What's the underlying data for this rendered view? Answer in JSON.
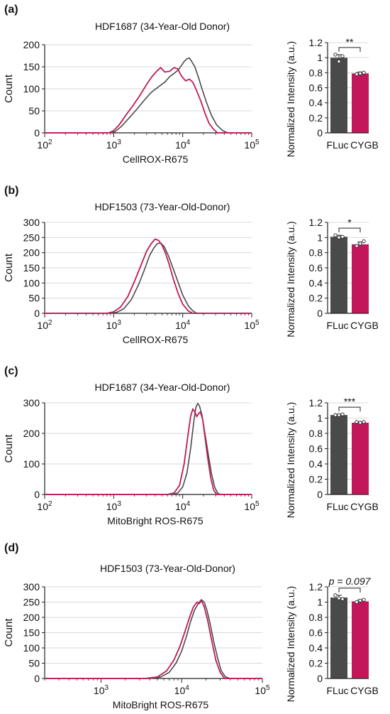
{
  "colors": {
    "fluc": "#4a4a4a",
    "cygb": "#c2185b",
    "grid": "#d9d9d9",
    "axis": "#222222"
  },
  "chart_data": [
    {
      "type": "line",
      "panel": "(a)",
      "title": "HDF1687 (34-Year-Old Donor)",
      "xlabel": "CellROX-R675",
      "ylabel": "Count",
      "xscale": "log",
      "xlim": [
        100,
        100000
      ],
      "ylim": [
        0,
        200
      ],
      "yticks": [
        0,
        50,
        100,
        150,
        200
      ],
      "xticks": [
        {
          "value": 100,
          "exp": "2"
        },
        {
          "value": 1000,
          "exp": "3"
        },
        {
          "value": 10000,
          "exp": "4"
        },
        {
          "value": 100000,
          "exp": "5"
        }
      ],
      "grid": "horizontal",
      "series": [
        {
          "color": "#4a4a4a",
          "points": [
            [
              100,
              0
            ],
            [
              900,
              0
            ],
            [
              1050,
              3
            ],
            [
              1300,
              15
            ],
            [
              1700,
              35
            ],
            [
              2200,
              55
            ],
            [
              2800,
              75
            ],
            [
              3500,
              92
            ],
            [
              4500,
              105
            ],
            [
              5500,
              115
            ],
            [
              6500,
              128
            ],
            [
              7500,
              135
            ],
            [
              8500,
              142
            ],
            [
              9500,
              152
            ],
            [
              10500,
              162
            ],
            [
              11500,
              168
            ],
            [
              12500,
              170
            ],
            [
              13500,
              162
            ],
            [
              15000,
              150
            ],
            [
              17000,
              125
            ],
            [
              19000,
              100
            ],
            [
              22000,
              70
            ],
            [
              26000,
              40
            ],
            [
              31000,
              18
            ],
            [
              38000,
              5
            ],
            [
              45000,
              0
            ],
            [
              100000,
              0
            ]
          ]
        },
        {
          "color": "#c2185b",
          "points": [
            [
              100,
              0
            ],
            [
              850,
              0
            ],
            [
              1000,
              5
            ],
            [
              1200,
              18
            ],
            [
              1500,
              40
            ],
            [
              1900,
              62
            ],
            [
              2400,
              85
            ],
            [
              3000,
              110
            ],
            [
              3600,
              128
            ],
            [
              4200,
              140
            ],
            [
              4800,
              148
            ],
            [
              5500,
              138
            ],
            [
              6500,
              140
            ],
            [
              7500,
              148
            ],
            [
              8500,
              145
            ],
            [
              9500,
              130
            ],
            [
              11000,
              118
            ],
            [
              12500,
              122
            ],
            [
              14000,
              115
            ],
            [
              16000,
              95
            ],
            [
              18500,
              70
            ],
            [
              21000,
              45
            ],
            [
              24000,
              22
            ],
            [
              28000,
              8
            ],
            [
              32000,
              0
            ],
            [
              100000,
              0
            ]
          ]
        }
      ]
    },
    {
      "type": "bar",
      "panel": "(a)",
      "categories": [
        "FLuc",
        "CYGB"
      ],
      "values": [
        1.0,
        0.79
      ],
      "errors": [
        0.04,
        0.02
      ],
      "points": [
        [
          1.04,
          0.95,
          1.02
        ],
        [
          0.78,
          0.79,
          0.8
        ]
      ],
      "ylabel": "Normalized Intensity (a.u.)",
      "ylim": [
        0,
        1.2
      ],
      "yticks": [
        "0",
        "0.2",
        "0.4",
        "0.6",
        "0.8",
        "1",
        "1.2"
      ],
      "significance": "**"
    },
    {
      "type": "line",
      "panel": "(b)",
      "title": "HDF1503 (73-Year-Old-Donor)",
      "xlabel": "CellROX-R675",
      "ylabel": "Count",
      "xscale": "log",
      "xlim": [
        100,
        100000
      ],
      "ylim": [
        0,
        300
      ],
      "yticks": [
        0,
        50,
        100,
        150,
        200,
        250,
        300
      ],
      "xticks": [
        {
          "value": 100,
          "exp": "2"
        },
        {
          "value": 1000,
          "exp": "3"
        },
        {
          "value": 10000,
          "exp": "4"
        },
        {
          "value": 100000,
          "exp": "5"
        }
      ],
      "grid": "horizontal",
      "series": [
        {
          "color": "#4a4a4a",
          "points": [
            [
              100,
              0
            ],
            [
              900,
              0
            ],
            [
              1100,
              3
            ],
            [
              1400,
              15
            ],
            [
              1800,
              45
            ],
            [
              2300,
              95
            ],
            [
              2800,
              145
            ],
            [
              3300,
              190
            ],
            [
              3800,
              215
            ],
            [
              4300,
              230
            ],
            [
              4800,
              232
            ],
            [
              5400,
              220
            ],
            [
              6200,
              190
            ],
            [
              7200,
              150
            ],
            [
              8500,
              105
            ],
            [
              10000,
              60
            ],
            [
              12000,
              25
            ],
            [
              14000,
              8
            ],
            [
              16000,
              0
            ],
            [
              100000,
              0
            ]
          ]
        },
        {
          "color": "#c2185b",
          "points": [
            [
              100,
              0
            ],
            [
              800,
              0
            ],
            [
              1000,
              5
            ],
            [
              1250,
              20
            ],
            [
              1600,
              55
            ],
            [
              2000,
              105
            ],
            [
              2500,
              160
            ],
            [
              3000,
              205
            ],
            [
              3500,
              230
            ],
            [
              4000,
              245
            ],
            [
              4500,
              240
            ],
            [
              5000,
              225
            ],
            [
              5600,
              200
            ],
            [
              6400,
              160
            ],
            [
              7400,
              110
            ],
            [
              8600,
              65
            ],
            [
              10000,
              30
            ],
            [
              12000,
              8
            ],
            [
              14000,
              0
            ],
            [
              100000,
              0
            ]
          ]
        }
      ]
    },
    {
      "type": "bar",
      "panel": "(b)",
      "categories": [
        "FLuc",
        "CYGB"
      ],
      "values": [
        1.01,
        0.91
      ],
      "errors": [
        0.02,
        0.03
      ],
      "points": [
        [
          1.03,
          1.0,
          1.01
        ],
        [
          0.89,
          0.92,
          0.95
        ]
      ],
      "ylabel": "Normalized Intensity (a.u.)",
      "ylim": [
        0,
        1.2
      ],
      "yticks": [
        "0",
        "0.2",
        "0.4",
        "0.6",
        "0.8",
        "1",
        "1.2"
      ],
      "significance": "*"
    },
    {
      "type": "line",
      "panel": "(c)",
      "title": "HDF1687 (34-Year-Old-Donor)",
      "xlabel": "MitoBright ROS-R675",
      "ylabel": "Count",
      "xscale": "log",
      "xlim": [
        100,
        100000
      ],
      "ylim": [
        0,
        300
      ],
      "yticks": [
        0,
        100,
        200,
        300
      ],
      "xticks": [
        {
          "value": 100,
          "exp": "2"
        },
        {
          "value": 1000,
          "exp": "3"
        },
        {
          "value": 10000,
          "exp": "4"
        },
        {
          "value": 100000,
          "exp": "5"
        }
      ],
      "grid": "horizontal",
      "series": [
        {
          "color": "#4a4a4a",
          "points": [
            [
              100,
              0
            ],
            [
              7000,
              0
            ],
            [
              8500,
              5
            ],
            [
              10000,
              25
            ],
            [
              11500,
              70
            ],
            [
              13000,
              150
            ],
            [
              14500,
              240
            ],
            [
              15500,
              285
            ],
            [
              16500,
              298
            ],
            [
              17500,
              290
            ],
            [
              19000,
              260
            ],
            [
              21000,
              200
            ],
            [
              23500,
              130
            ],
            [
              26000,
              70
            ],
            [
              29000,
              25
            ],
            [
              32000,
              5
            ],
            [
              35000,
              0
            ],
            [
              100000,
              0
            ]
          ]
        },
        {
          "color": "#c2185b",
          "points": [
            [
              100,
              0
            ],
            [
              6000,
              0
            ],
            [
              7500,
              5
            ],
            [
              9000,
              30
            ],
            [
              10500,
              100
            ],
            [
              12000,
              200
            ],
            [
              13000,
              255
            ],
            [
              14000,
              280
            ],
            [
              15000,
              270
            ],
            [
              16000,
              255
            ],
            [
              17000,
              265
            ],
            [
              18000,
              270
            ],
            [
              19500,
              245
            ],
            [
              21000,
              190
            ],
            [
              23000,
              120
            ],
            [
              25500,
              55
            ],
            [
              28000,
              15
            ],
            [
              31000,
              0
            ],
            [
              100000,
              0
            ]
          ]
        }
      ]
    },
    {
      "type": "bar",
      "panel": "(c)",
      "categories": [
        "FLuc",
        "CYGB"
      ],
      "values": [
        1.04,
        0.94
      ],
      "errors": [
        0.01,
        0.01
      ],
      "points": [
        [
          1.04,
          1.04,
          1.05
        ],
        [
          0.95,
          0.94,
          0.95
        ]
      ],
      "ylabel": "Normalized Intensity (a.u.)",
      "ylim": [
        0,
        1.2
      ],
      "yticks": [
        "0",
        "0.2",
        "0.4",
        "0.6",
        "0.8",
        "1",
        "1.2"
      ],
      "significance": "***"
    },
    {
      "type": "line",
      "panel": "(d)",
      "title": "HDF1503 (73-Year-Old-Donor)",
      "xlabel": "MitoBright ROS-R675",
      "ylabel": "Count",
      "xscale": "log",
      "xlim": [
        200,
        100000
      ],
      "ylim": [
        0,
        300
      ],
      "yticks": [
        0,
        50,
        100,
        150,
        200,
        250,
        300
      ],
      "xticks": [
        {
          "value": 1000,
          "exp": "3"
        },
        {
          "value": 10000,
          "exp": "4"
        },
        {
          "value": 100000,
          "exp": "5"
        }
      ],
      "grid": "horizontal",
      "series": [
        {
          "color": "#4a4a4a",
          "points": [
            [
              200,
              0
            ],
            [
              4000,
              0
            ],
            [
              5500,
              5
            ],
            [
              7000,
              20
            ],
            [
              8500,
              50
            ],
            [
              10000,
              90
            ],
            [
              11500,
              140
            ],
            [
              13000,
              190
            ],
            [
              14500,
              225
            ],
            [
              16000,
              245
            ],
            [
              17500,
              258
            ],
            [
              19000,
              250
            ],
            [
              20500,
              225
            ],
            [
              22500,
              180
            ],
            [
              25000,
              120
            ],
            [
              28000,
              65
            ],
            [
              31000,
              25
            ],
            [
              35000,
              5
            ],
            [
              40000,
              0
            ],
            [
              100000,
              0
            ]
          ]
        },
        {
          "color": "#c2185b",
          "points": [
            [
              200,
              0
            ],
            [
              3500,
              0
            ],
            [
              5000,
              5
            ],
            [
              6500,
              25
            ],
            [
              8000,
              60
            ],
            [
              9500,
              105
            ],
            [
              11000,
              155
            ],
            [
              12500,
              200
            ],
            [
              14000,
              235
            ],
            [
              15500,
              250
            ],
            [
              16500,
              245
            ],
            [
              17500,
              255
            ],
            [
              19000,
              235
            ],
            [
              21000,
              190
            ],
            [
              23500,
              125
            ],
            [
              26500,
              60
            ],
            [
              30000,
              20
            ],
            [
              34000,
              0
            ],
            [
              100000,
              0
            ]
          ]
        }
      ]
    },
    {
      "type": "bar",
      "panel": "(d)",
      "categories": [
        "FLuc",
        "CYGB"
      ],
      "values": [
        1.06,
        1.01
      ],
      "errors": [
        0.03,
        0.02
      ],
      "points": [
        [
          1.09,
          1.05,
          1.04
        ],
        [
          1.0,
          1.02,
          1.03
        ]
      ],
      "ylabel": "Normalized Intensity (a.u.)",
      "ylim": [
        0,
        1.2
      ],
      "yticks": [
        "0",
        "0.2",
        "0.4",
        "0.6",
        "0.8",
        "1",
        "1.2"
      ],
      "significance": "p = 0.097"
    }
  ]
}
